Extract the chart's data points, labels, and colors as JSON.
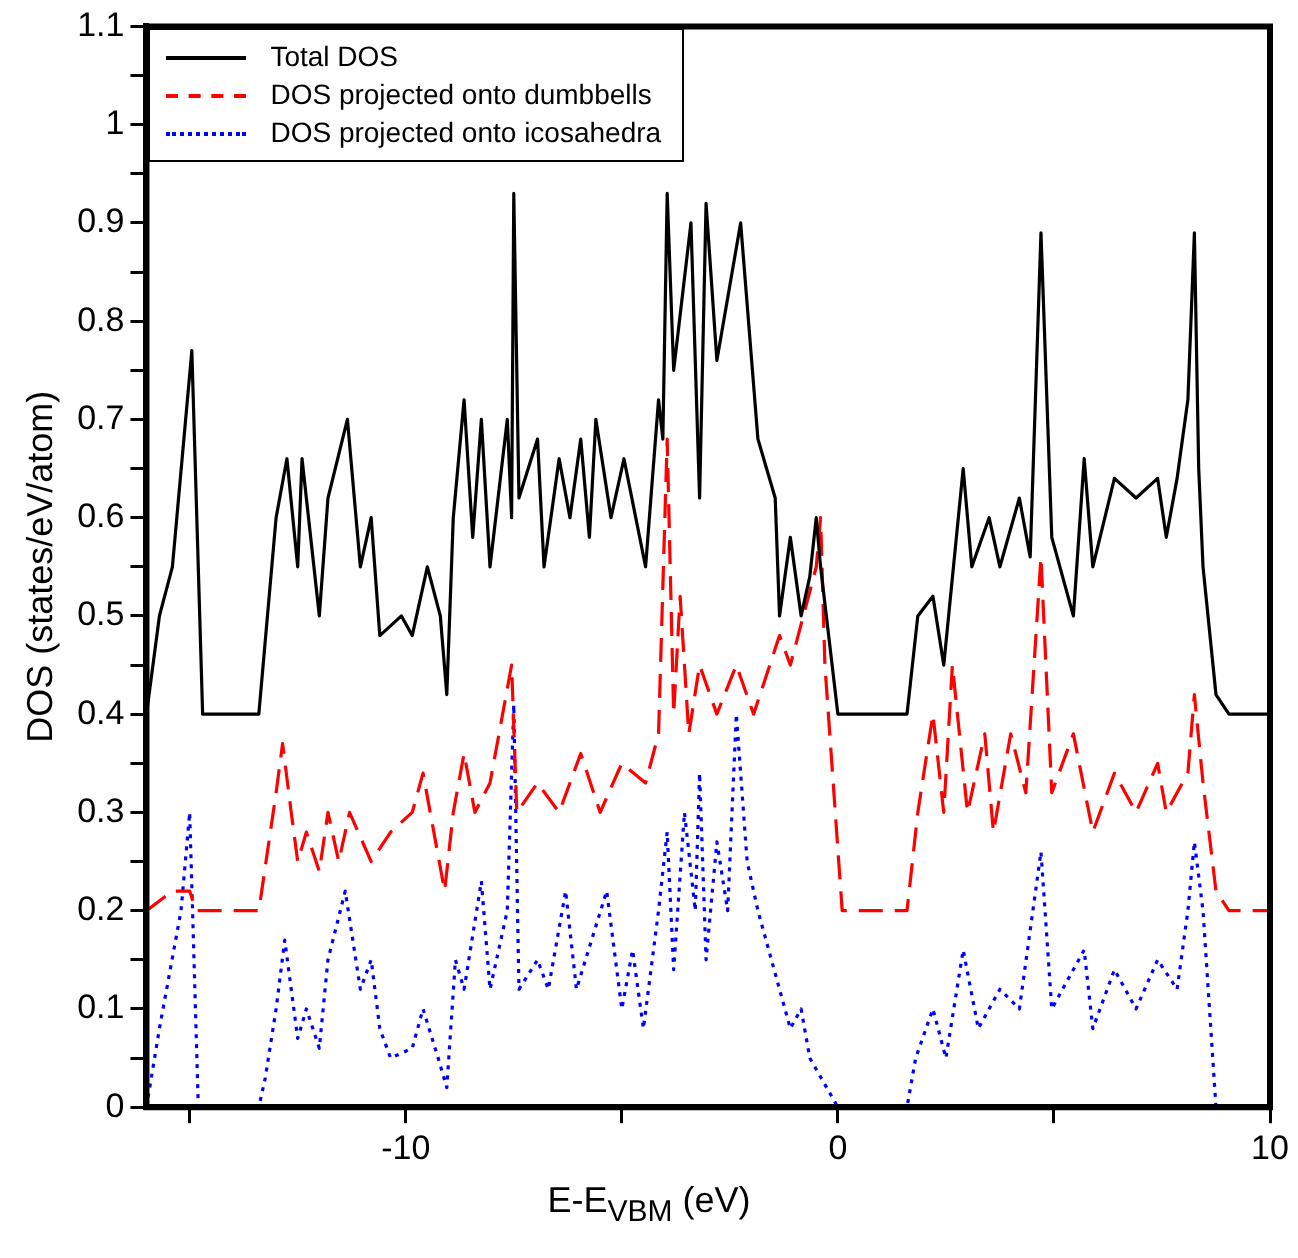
{
  "chart_data": {
    "type": "line",
    "xlabel": "E-E$_{VBM}$ (eV)",
    "ylabel": "DOS (states/eV/atom)",
    "xlim": [
      -16,
      10
    ],
    "ylim": [
      0,
      1.1
    ],
    "xticks": [
      {
        "value": -15,
        "label": null
      },
      -10,
      {
        "value": -5,
        "label": null
      },
      0,
      {
        "value": 5,
        "label": null
      },
      10
    ],
    "yticks": [
      0,
      {
        "value": 0.05,
        "label": null
      },
      0.1,
      {
        "value": 0.15,
        "label": null
      },
      0.2,
      {
        "value": 0.25,
        "label": null
      },
      0.3,
      {
        "value": 0.35,
        "label": null
      },
      0.4,
      {
        "value": 0.45,
        "label": null
      },
      0.5,
      {
        "value": 0.55,
        "label": null
      },
      0.6,
      {
        "value": 0.65,
        "label": null
      },
      0.7,
      {
        "value": 0.75,
        "label": null
      },
      0.8,
      {
        "value": 0.85,
        "label": null
      },
      0.9,
      {
        "value": 0.95,
        "label": null
      },
      1,
      {
        "value": 1.05,
        "label": null
      },
      1.1
    ],
    "grid": false,
    "legend": "top left",
    "marker": "none",
    "series": [
      {
        "name": "Total DOS",
        "color": "#000000",
        "line_style": "solid",
        "x": [
          -16,
          -15.7,
          -15.4,
          -14.95,
          -14.7,
          -13.4,
          -13.0,
          -12.75,
          -12.5,
          -12.4,
          -12.0,
          -11.8,
          -11.35,
          -11.05,
          -10.8,
          -10.6,
          -10.1,
          -9.85,
          -9.5,
          -9.2,
          -9.05,
          -8.9,
          -8.65,
          -8.45,
          -8.25,
          -8.05,
          -7.65,
          -7.55,
          -7.5,
          -7.38,
          -6.95,
          -6.8,
          -6.45,
          -6.2,
          -5.95,
          -5.75,
          -5.6,
          -5.25,
          -4.95,
          -4.45,
          -4.15,
          -4.05,
          -3.95,
          -3.8,
          -3.4,
          -3.2,
          -3.05,
          -2.8,
          -2.25,
          -1.85,
          -1.45,
          -1.35,
          -1.1,
          -0.85,
          -0.65,
          -0.5,
          -0.4,
          0,
          1.6,
          1.85,
          2.2,
          2.45,
          2.9,
          3.1,
          3.5,
          3.75,
          4.2,
          4.45,
          4.7,
          4.95,
          5.45,
          5.7,
          5.9,
          6.4,
          6.9,
          7.4,
          7.6,
          7.85,
          8.1,
          8.25,
          8.35,
          8.45,
          8.75,
          9.05,
          10
        ],
        "values": [
          0.4,
          0.5,
          0.55,
          0.77,
          0.4,
          0.4,
          0.6,
          0.66,
          0.55,
          0.66,
          0.5,
          0.62,
          0.7,
          0.55,
          0.6,
          0.48,
          0.5,
          0.48,
          0.55,
          0.5,
          0.42,
          0.6,
          0.72,
          0.58,
          0.7,
          0.55,
          0.7,
          0.6,
          0.93,
          0.62,
          0.68,
          0.55,
          0.66,
          0.6,
          0.68,
          0.58,
          0.7,
          0.6,
          0.66,
          0.55,
          0.72,
          0.68,
          0.93,
          0.75,
          0.9,
          0.62,
          0.92,
          0.76,
          0.9,
          0.68,
          0.62,
          0.5,
          0.58,
          0.5,
          0.54,
          0.6,
          0.55,
          0.4,
          0.4,
          0.5,
          0.52,
          0.45,
          0.65,
          0.55,
          0.6,
          0.55,
          0.62,
          0.56,
          0.89,
          0.58,
          0.5,
          0.66,
          0.55,
          0.64,
          0.62,
          0.64,
          0.58,
          0.64,
          0.72,
          0.89,
          0.65,
          0.55,
          0.42,
          0.4,
          0.4
        ]
      },
      {
        "name": "DOS projected onto dumbbells",
        "color": "#ff0000",
        "line_style": "dashed",
        "x": [
          -16,
          -15.4,
          -15.0,
          -14.85,
          -13.4,
          -13.0,
          -12.85,
          -12.65,
          -12.5,
          -12.3,
          -12.0,
          -11.8,
          -11.55,
          -11.3,
          -10.8,
          -10.35,
          -9.85,
          -9.6,
          -9.35,
          -9.1,
          -8.9,
          -8.65,
          -8.4,
          -8.05,
          -7.55,
          -7.43,
          -6.95,
          -6.45,
          -5.95,
          -5.5,
          -5.0,
          -4.45,
          -4.15,
          -3.95,
          -3.8,
          -3.65,
          -3.45,
          -3.2,
          -2.8,
          -2.35,
          -1.95,
          -1.35,
          -1.1,
          -0.5,
          -0.4,
          -0.3,
          0.1,
          1.6,
          1.85,
          2.2,
          2.45,
          2.65,
          3.0,
          3.4,
          3.6,
          4.0,
          4.35,
          4.7,
          4.95,
          5.45,
          5.9,
          6.4,
          6.9,
          7.4,
          7.6,
          8.1,
          8.25,
          8.45,
          8.75,
          9.05,
          10
        ],
        "values": [
          0.2,
          0.22,
          0.22,
          0.2,
          0.2,
          0.32,
          0.37,
          0.3,
          0.25,
          0.28,
          0.24,
          0.3,
          0.25,
          0.3,
          0.25,
          0.28,
          0.3,
          0.34,
          0.28,
          0.22,
          0.3,
          0.36,
          0.3,
          0.33,
          0.45,
          0.3,
          0.33,
          0.3,
          0.36,
          0.3,
          0.35,
          0.33,
          0.38,
          0.68,
          0.4,
          0.52,
          0.38,
          0.45,
          0.4,
          0.45,
          0.4,
          0.48,
          0.45,
          0.55,
          0.6,
          0.45,
          0.2,
          0.2,
          0.3,
          0.4,
          0.3,
          0.45,
          0.3,
          0.38,
          0.28,
          0.38,
          0.32,
          0.56,
          0.32,
          0.38,
          0.28,
          0.34,
          0.3,
          0.35,
          0.3,
          0.34,
          0.42,
          0.33,
          0.22,
          0.2,
          0.2
        ]
      },
      {
        "name": "DOS projected onto icosahedra",
        "color": "#0000ff",
        "line_style": "dotted",
        "x": [
          -16,
          -15.7,
          -15.2,
          -15.0,
          -14.8,
          -13.4,
          -13.25,
          -13.0,
          -12.8,
          -12.5,
          -12.3,
          -12.0,
          -11.8,
          -11.4,
          -11.05,
          -10.8,
          -10.6,
          -10.35,
          -9.85,
          -9.6,
          -9.25,
          -9.05,
          -8.85,
          -8.65,
          -8.25,
          -8.05,
          -7.65,
          -7.5,
          -7.38,
          -6.95,
          -6.7,
          -6.3,
          -6.05,
          -5.35,
          -5.0,
          -4.75,
          -4.5,
          -4.15,
          -3.95,
          -3.8,
          -3.55,
          -3.3,
          -3.2,
          -3.05,
          -2.8,
          -2.55,
          -2.35,
          -2.1,
          -1.85,
          -1.35,
          -1.1,
          -0.85,
          -0.65,
          0,
          1.6,
          1.8,
          2.2,
          2.5,
          2.9,
          3.25,
          3.75,
          4.2,
          4.7,
          4.95,
          5.7,
          5.9,
          6.4,
          6.9,
          7.4,
          7.85,
          8.1,
          8.25,
          8.45,
          8.75
        ],
        "values": [
          0,
          0.08,
          0.2,
          0.3,
          0,
          0,
          0.03,
          0.1,
          0.17,
          0.07,
          0.1,
          0.06,
          0.15,
          0.22,
          0.12,
          0.15,
          0.08,
          0.05,
          0.06,
          0.1,
          0.05,
          0.02,
          0.15,
          0.12,
          0.23,
          0.12,
          0.2,
          0.41,
          0.12,
          0.15,
          0.12,
          0.22,
          0.12,
          0.22,
          0.1,
          0.16,
          0.08,
          0.2,
          0.28,
          0.14,
          0.3,
          0.2,
          0.34,
          0.15,
          0.27,
          0.2,
          0.4,
          0.25,
          0.2,
          0.12,
          0.08,
          0.1,
          0.05,
          0,
          0,
          0.05,
          0.1,
          0.05,
          0.16,
          0.08,
          0.12,
          0.1,
          0.26,
          0.1,
          0.16,
          0.08,
          0.14,
          0.1,
          0.15,
          0.12,
          0.2,
          0.27,
          0.2,
          0
        ]
      }
    ]
  }
}
